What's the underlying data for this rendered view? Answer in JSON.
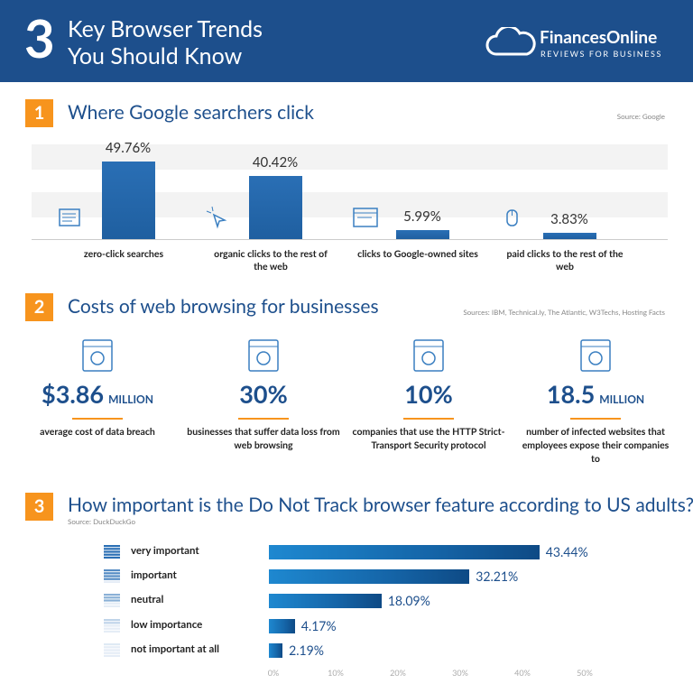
{
  "header": {
    "number": "3",
    "title_line1": "Key Browser Trends",
    "title_line2": "You Should Know",
    "brand": "FinancesOnline",
    "tagline": "REVIEWS FOR BUSINESS"
  },
  "section1": {
    "number": "1",
    "title": "Where Google searchers click",
    "source": "Source: Google",
    "chart_data": {
      "type": "bar",
      "categories": [
        "zero-click searches",
        "organic clicks to the rest of the web",
        "clicks to Google-owned sites",
        "paid clicks to the rest of the web"
      ],
      "values": [
        49.76,
        40.42,
        5.99,
        3.83
      ],
      "value_labels": [
        "49.76%",
        "40.42%",
        "5.99%",
        "3.83%"
      ],
      "color": "#1f5fa0"
    }
  },
  "section2": {
    "number": "2",
    "title": "Costs of web browsing for businesses",
    "source": "Sources: IBM, Technical.ly, The Atlantic, W3Techs, Hosting Facts",
    "stats": [
      {
        "value": "$3.86",
        "unit": "MILLION",
        "description": "average cost of data breach"
      },
      {
        "value": "30%",
        "description": "businesses that suffer data loss from web browsing"
      },
      {
        "value": "10%",
        "description": "companies that use the HTTP Strict-Transport Security protocol"
      },
      {
        "value": "18.5",
        "unit": "MILLION",
        "description": "number of infected websites that employees expose their companies to"
      }
    ]
  },
  "section3": {
    "number": "3",
    "title": "How important is the Do Not Track browser feature according to US adults?",
    "source": "Source: DuckDuckGo",
    "chart_data": {
      "type": "hbar",
      "categories": [
        "very important",
        "important",
        "neutral",
        "low importance",
        "not important at all"
      ],
      "values": [
        43.44,
        32.21,
        18.09,
        4.17,
        2.19
      ],
      "value_labels": [
        "43.44%",
        "32.21%",
        "18.09%",
        "4.17%",
        "2.19%"
      ],
      "color": "#1565a8",
      "xlim": [
        0,
        50
      ],
      "xticks": [
        {
          "value": 0,
          "label": "0%"
        },
        {
          "value": 10,
          "label": "10%"
        },
        {
          "value": 20,
          "label": "20%"
        },
        {
          "value": 30,
          "label": "30%"
        },
        {
          "value": 40,
          "label": "40%"
        },
        {
          "value": 50,
          "label": "50%"
        }
      ]
    }
  }
}
